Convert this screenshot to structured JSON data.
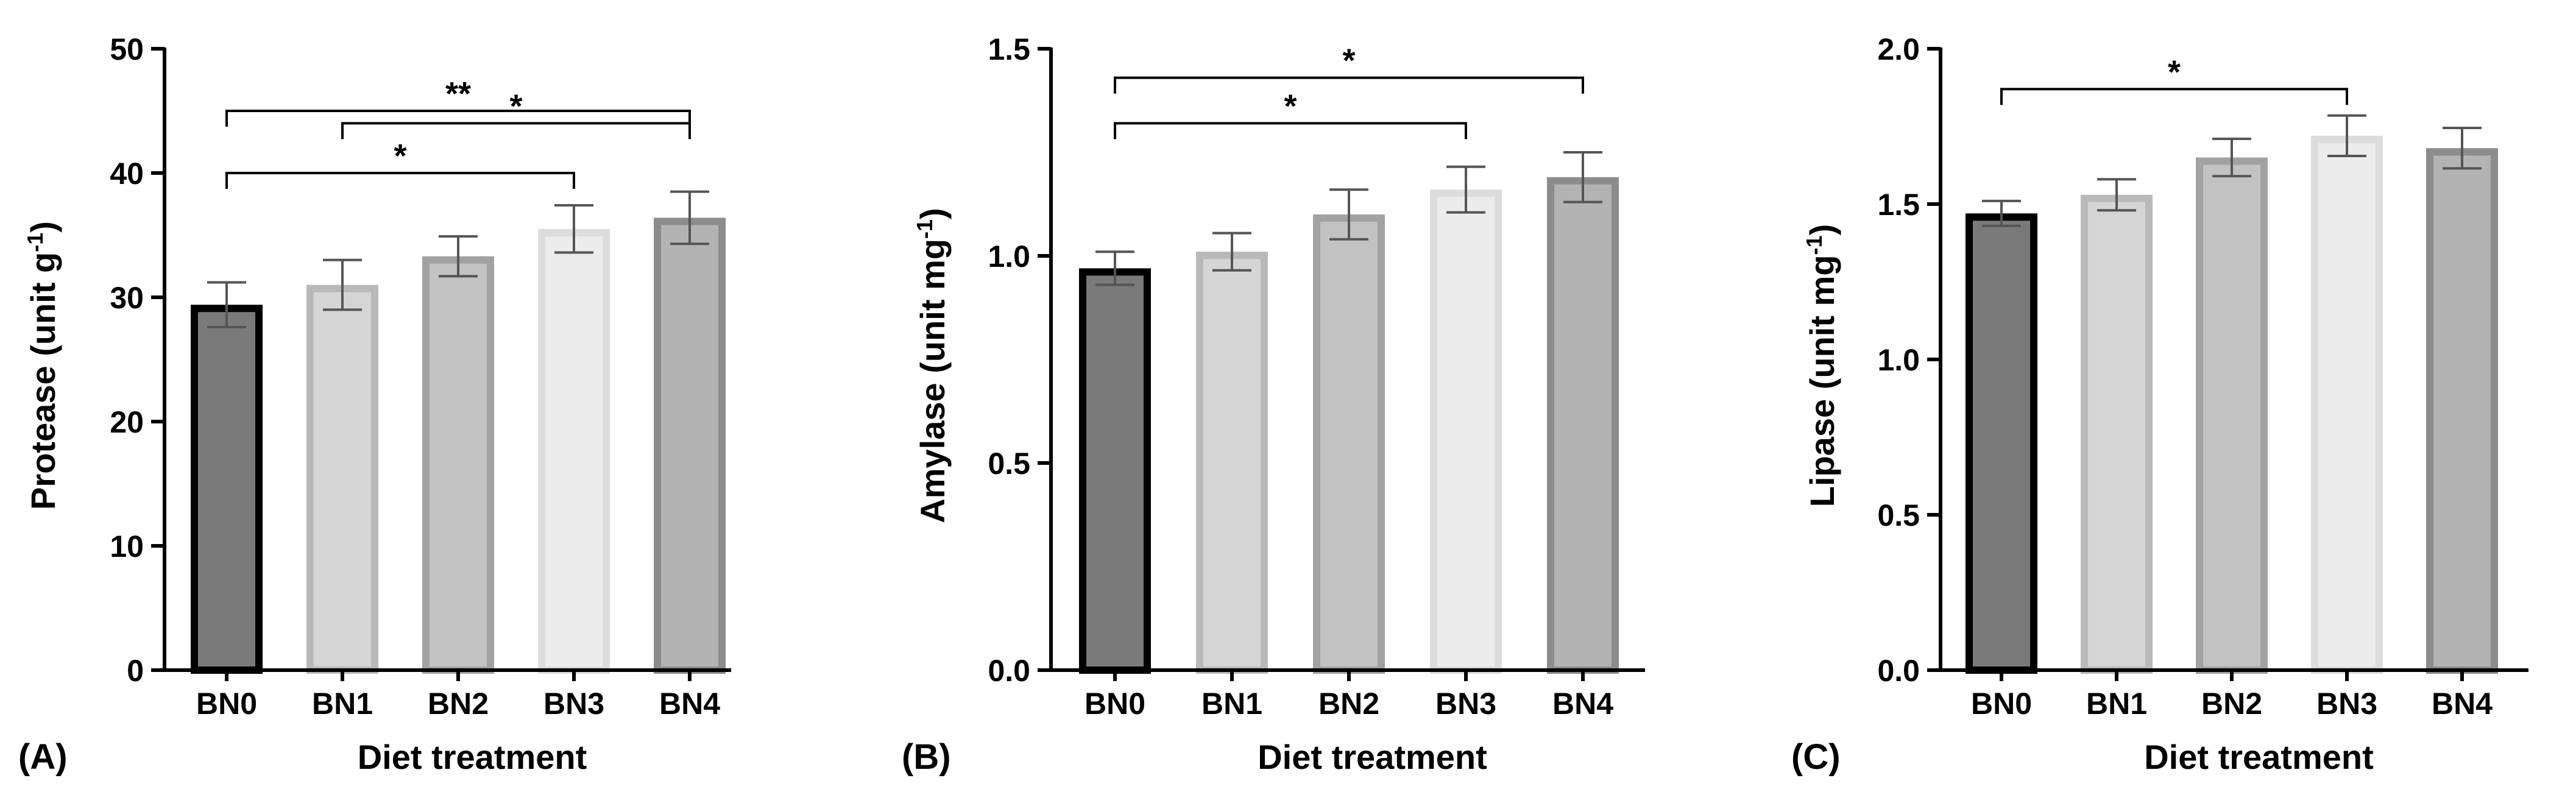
{
  "figure": {
    "panels": [
      "(A)",
      "(B)",
      "(C)"
    ]
  },
  "chart_data": [
    {
      "type": "bar",
      "panel": "(A)",
      "categories": [
        "BN0",
        "BN1",
        "BN2",
        "BN3",
        "BN4"
      ],
      "values": [
        29.4,
        31.0,
        33.3,
        35.5,
        36.4
      ],
      "errors": [
        1.8,
        2.0,
        1.6,
        1.9,
        2.1
      ],
      "colors": [
        "#7a7a7a",
        "#d5d5d5",
        "#c2c2c2",
        "#ececec",
        "#b3b3b3"
      ],
      "edge_colors": [
        "#000000",
        "#b9b9b9",
        "#a2a2a2",
        "#dcdcdc",
        "#8c8c8c"
      ],
      "xlabel": "Diet treatment",
      "ylabel_main": "Protease (unit g",
      "ylabel_sup": "-1",
      "ylabel_end": ")",
      "ylim": [
        0,
        50
      ],
      "yticks": [
        0,
        10,
        20,
        30,
        40,
        50
      ],
      "ytick_labels": [
        "0",
        "10",
        "20",
        "30",
        "40",
        "50"
      ],
      "significance": [
        {
          "from": 0,
          "to": 4,
          "label": "**",
          "level": 45.0
        },
        {
          "from": 1,
          "to": 4,
          "label": "*",
          "level": 44.0
        },
        {
          "from": 0,
          "to": 3,
          "label": "*",
          "level": 40.0
        }
      ]
    },
    {
      "type": "bar",
      "panel": "(B)",
      "categories": [
        "BN0",
        "BN1",
        "BN2",
        "BN3",
        "BN4"
      ],
      "values": [
        0.97,
        1.01,
        1.1,
        1.16,
        1.19
      ],
      "errors": [
        0.04,
        0.045,
        0.06,
        0.055,
        0.06
      ],
      "colors": [
        "#7a7a7a",
        "#d5d5d5",
        "#c2c2c2",
        "#ececec",
        "#b3b3b3"
      ],
      "edge_colors": [
        "#000000",
        "#b9b9b9",
        "#a2a2a2",
        "#dcdcdc",
        "#8c8c8c"
      ],
      "xlabel": "Diet treatment",
      "ylabel_main": "Amylase (unit mg",
      "ylabel_sup": "-1",
      "ylabel_end": ")",
      "ylim": [
        0,
        1.5
      ],
      "yticks": [
        0,
        0.5,
        1.0,
        1.5
      ],
      "ytick_labels": [
        "0.0",
        "0.5",
        "1.0",
        "1.5"
      ],
      "significance": [
        {
          "from": 0,
          "to": 4,
          "label": "*",
          "level": 1.43
        },
        {
          "from": 0,
          "to": 3,
          "label": "*",
          "level": 1.32
        }
      ]
    },
    {
      "type": "bar",
      "panel": "(C)",
      "categories": [
        "BN0",
        "BN1",
        "BN2",
        "BN3",
        "BN4"
      ],
      "values": [
        1.47,
        1.53,
        1.65,
        1.72,
        1.68
      ],
      "errors": [
        0.04,
        0.05,
        0.06,
        0.065,
        0.065
      ],
      "colors": [
        "#7a7a7a",
        "#d5d5d5",
        "#c2c2c2",
        "#ececec",
        "#b3b3b3"
      ],
      "edge_colors": [
        "#000000",
        "#b9b9b9",
        "#a2a2a2",
        "#dcdcdc",
        "#8c8c8c"
      ],
      "xlabel": "Diet treatment",
      "ylabel_main": "Lipase (unit mg",
      "ylabel_sup": "-1",
      "ylabel_end": ")",
      "ylim": [
        0,
        2.0
      ],
      "yticks": [
        0,
        0.5,
        1.0,
        1.5,
        2.0
      ],
      "ytick_labels": [
        "0.0",
        "0.5",
        "1.0",
        "1.5",
        "2.0"
      ],
      "significance": [
        {
          "from": 0,
          "to": 3,
          "label": "*",
          "level": 1.87
        }
      ]
    }
  ]
}
